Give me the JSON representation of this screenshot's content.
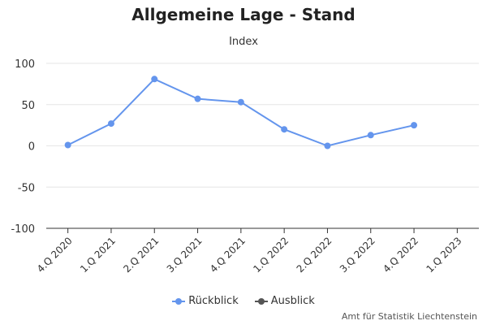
{
  "chart_data": {
    "type": "line",
    "title": "Allgemeine Lage - Stand",
    "subtitle": "Index",
    "categories": [
      "4.Q 2020",
      "1.Q 2021",
      "2.Q 2021",
      "3.Q 2021",
      "4.Q 2021",
      "1.Q 2022",
      "2.Q 2022",
      "3.Q 2022",
      "4.Q 2022",
      "1.Q 2023"
    ],
    "yticks": [
      100,
      50,
      0,
      -50,
      -100
    ],
    "ylim": [
      -100,
      100
    ],
    "series": [
      {
        "name": "Rückblick",
        "color": "#6495ed",
        "values": [
          1,
          27,
          81,
          57,
          53,
          20,
          0,
          13,
          25,
          null
        ]
      },
      {
        "name": "Ausblick",
        "color": "#555555",
        "values": [
          null,
          null,
          null,
          null,
          null,
          null,
          null,
          null,
          null,
          null
        ]
      }
    ],
    "legend_position": "bottom-center",
    "grid": true,
    "credit": "Amt für Statistik Liechtenstein"
  }
}
